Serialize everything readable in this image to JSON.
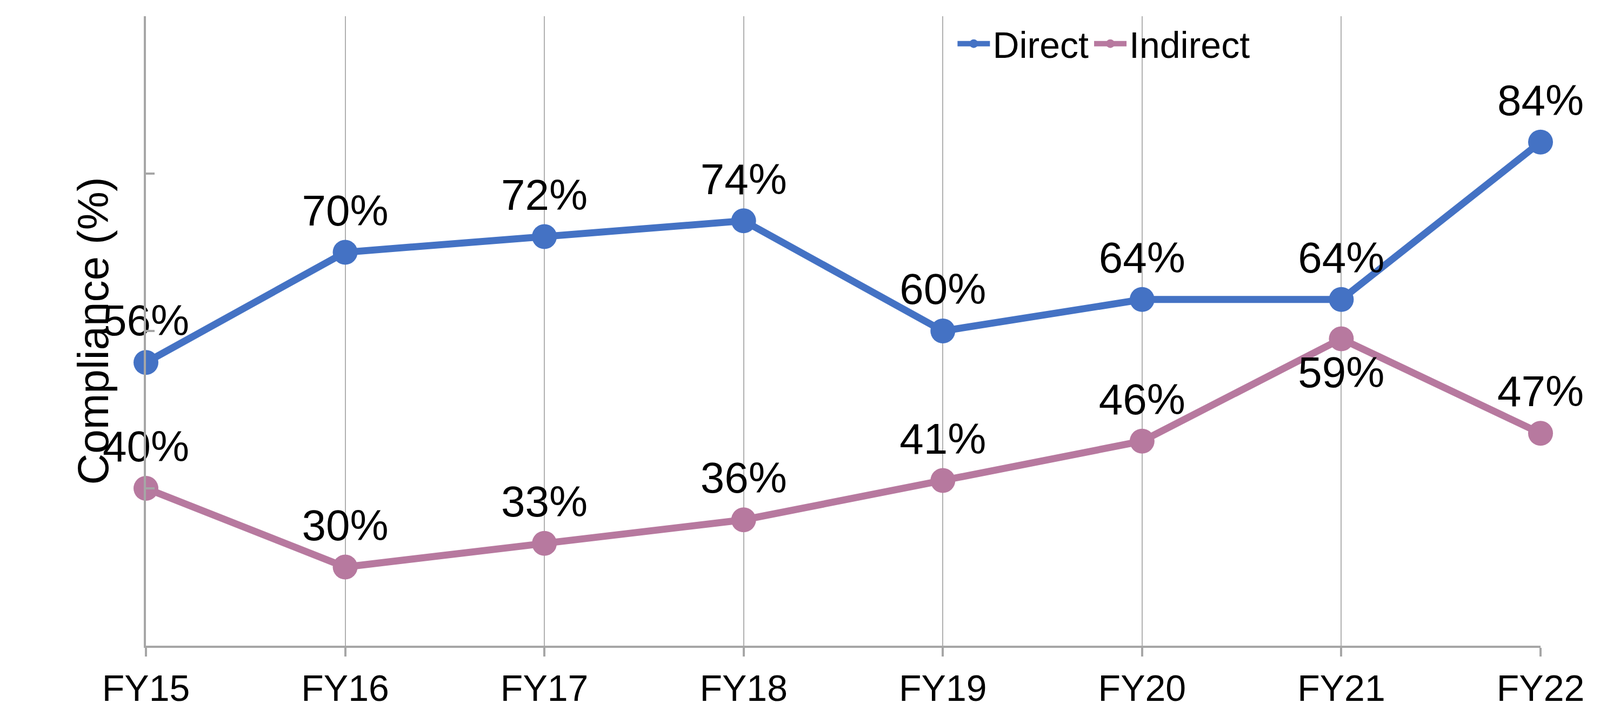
{
  "chart_data": {
    "type": "line",
    "y_label": "Compliance (%)",
    "categories": [
      "FY15",
      "FY16",
      "FY17",
      "FY18",
      "FY19",
      "FY20",
      "FY21",
      "FY22"
    ],
    "series": [
      {
        "name": "Direct",
        "color": "#4472c4",
        "marker": "circle",
        "values": [
          56,
          70,
          72,
          74,
          60,
          64,
          64,
          84
        ],
        "value_labels": [
          "56%",
          "70%",
          "72%",
          "74%",
          "60%",
          "64%",
          "64%",
          "84%"
        ]
      },
      {
        "name": "Indirect",
        "color": "#b7799f",
        "marker": "circle",
        "values": [
          40,
          30,
          33,
          36,
          41,
          46,
          59,
          47
        ],
        "value_labels": [
          "40%",
          "30%",
          "33%",
          "36%",
          "41%",
          "46%",
          "59%",
          "47%"
        ]
      }
    ],
    "ylim": [
      20,
      100
    ],
    "yticks": [
      20,
      40,
      60,
      80,
      100
    ],
    "grid": "x",
    "legend": "upper right",
    "data_labels": true,
    "tick_labels": "x"
  }
}
